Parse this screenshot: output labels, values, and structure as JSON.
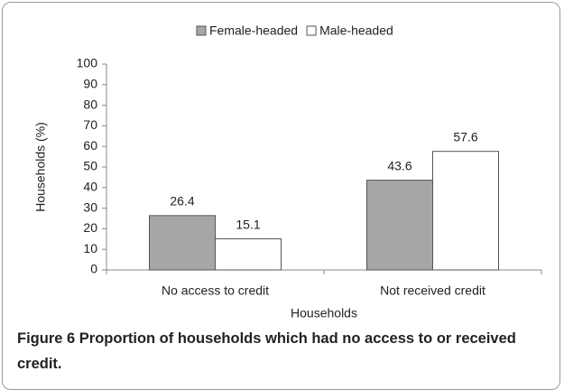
{
  "chart_data": {
    "type": "bar",
    "categories": [
      "No access to credit",
      "Not received credit"
    ],
    "series": [
      {
        "name": "Female-headed",
        "color": "#a6a6a6",
        "values": [
          26.4,
          43.6
        ]
      },
      {
        "name": "Male-headed",
        "color": "#ffffff",
        "values": [
          15.1,
          57.6
        ]
      }
    ],
    "ylim": [
      0,
      100
    ],
    "yticks": [
      0,
      10,
      20,
      30,
      40,
      50,
      60,
      70,
      80,
      90,
      100
    ],
    "ylabel": "Households (%)",
    "xlabel": "Households",
    "legend": "top",
    "show_values": true
  },
  "caption": {
    "label": "Figure 6",
    "text": "Proportion of households which had no access to or received credit."
  }
}
